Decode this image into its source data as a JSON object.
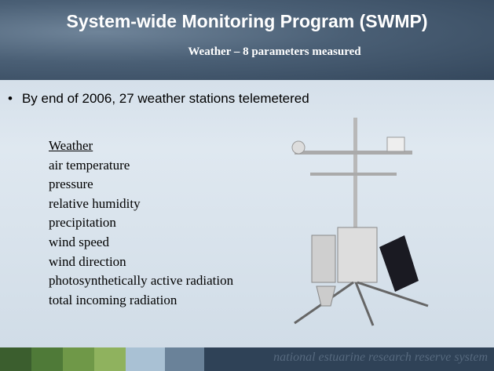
{
  "header": {
    "title": "System-wide Monitoring Program (SWMP)",
    "subtitle": "Weather – 8 parameters measured"
  },
  "bullet": "By end of 2006, 27 weather stations telemetered",
  "list": {
    "heading": "Weather",
    "items": [
      "air temperature",
      "pressure",
      "relative humidity",
      "precipitation",
      "wind speed",
      "wind direction",
      "photosynthetically active radiation",
      "total incoming radiation"
    ]
  },
  "footer": {
    "text": "national estuarine research reserve system"
  }
}
